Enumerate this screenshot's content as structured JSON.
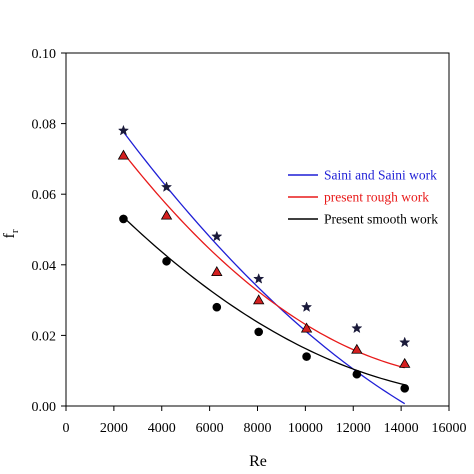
{
  "chart_data": {
    "type": "line",
    "xlabel": "Re",
    "ylabel_base": "f",
    "ylabel_sub": "r",
    "xlim": [
      0,
      16000
    ],
    "ylim": [
      0.0,
      0.1
    ],
    "xticks": [
      0,
      2000,
      4000,
      6000,
      8000,
      10000,
      12000,
      14000,
      16000
    ],
    "xtick_labels": [
      "0",
      "2000",
      "4000",
      "6000",
      "8000",
      "10000",
      "12000",
      "14000",
      "16000"
    ],
    "yticks": [
      0.0,
      0.02,
      0.04,
      0.06,
      0.08,
      0.1
    ],
    "ytick_labels": [
      "0.00",
      "0.02",
      "0.04",
      "0.06",
      "0.08",
      "0.10"
    ],
    "grid": false,
    "legend_position": "right",
    "series": [
      {
        "name": "Saini and Saini work",
        "color": "#1f1fd6",
        "text_color": "#1f1fd6",
        "marker": "star",
        "marker_fill": "#1a1a3a",
        "points": [
          [
            2400,
            0.078
          ],
          [
            4200,
            0.062
          ],
          [
            6300,
            0.048
          ],
          [
            8050,
            0.036
          ],
          [
            10050,
            0.028
          ],
          [
            12150,
            0.022
          ],
          [
            14150,
            0.018
          ]
        ],
        "fit": [
          2.075e-10,
          -9.985e-06,
          0.1004
        ]
      },
      {
        "name": "present rough work",
        "color": "#e81a1a",
        "text_color": "#e81a1a",
        "marker": "triangle",
        "marker_fill": "#d42020",
        "points": [
          [
            2400,
            0.071
          ],
          [
            4200,
            0.054
          ],
          [
            6300,
            0.038
          ],
          [
            8050,
            0.03
          ],
          [
            10050,
            0.022
          ],
          [
            12150,
            0.016
          ],
          [
            14150,
            0.012
          ]
        ],
        "fit": [
          2.913e-10,
          -9.995e-06,
          0.09395
        ]
      },
      {
        "name": "Present smooth work",
        "color": "#000000",
        "text_color": "#000000",
        "marker": "circle",
        "marker_fill": "#000000",
        "points": [
          [
            2400,
            0.053
          ],
          [
            4200,
            0.041
          ],
          [
            6300,
            0.028
          ],
          [
            8050,
            0.021
          ],
          [
            10050,
            0.014
          ],
          [
            12150,
            0.009
          ],
          [
            14150,
            0.005
          ]
        ],
        "fit": [
          2.065e-10,
          -7.457e-06,
          0.0702
        ]
      }
    ]
  }
}
